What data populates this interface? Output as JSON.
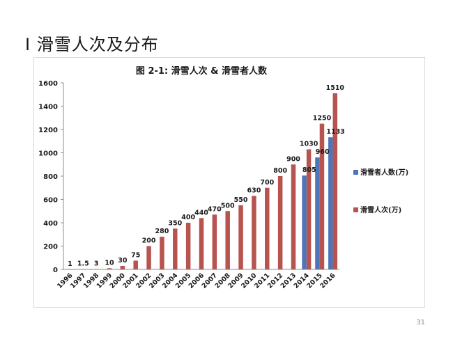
{
  "slide": {
    "title": "I  滑雪人次及分布",
    "page_number": "31"
  },
  "chart_data": {
    "type": "bar",
    "title": "图 2-1: 滑雪人次 & 滑雪者人数",
    "xlabel": "",
    "ylabel": "",
    "ylim": [
      0,
      1600
    ],
    "yticks": [
      0,
      200,
      400,
      600,
      800,
      1000,
      1200,
      1400,
      1600
    ],
    "grid": false,
    "legend_position": "right",
    "categories": [
      "1996",
      "1997",
      "1998",
      "1999",
      "2000",
      "2001",
      "2002",
      "2003",
      "2004",
      "2005",
      "2006",
      "2007",
      "2008",
      "2009",
      "2010",
      "2011",
      "2012",
      "2013",
      "2014",
      "2015",
      "2016"
    ],
    "series": [
      {
        "name": "滑雪者人数(万)",
        "color": "#4f74b8",
        "values": [
          null,
          null,
          null,
          null,
          null,
          null,
          null,
          null,
          null,
          null,
          null,
          null,
          null,
          null,
          null,
          null,
          null,
          null,
          805,
          960,
          1133
        ]
      },
      {
        "name": "滑雪人次(万)",
        "color": "#b85450",
        "values": [
          1,
          1.5,
          3,
          10,
          30,
          75,
          200,
          280,
          350,
          400,
          440,
          470,
          500,
          550,
          630,
          700,
          800,
          900,
          1030,
          1250,
          1510
        ]
      }
    ]
  }
}
